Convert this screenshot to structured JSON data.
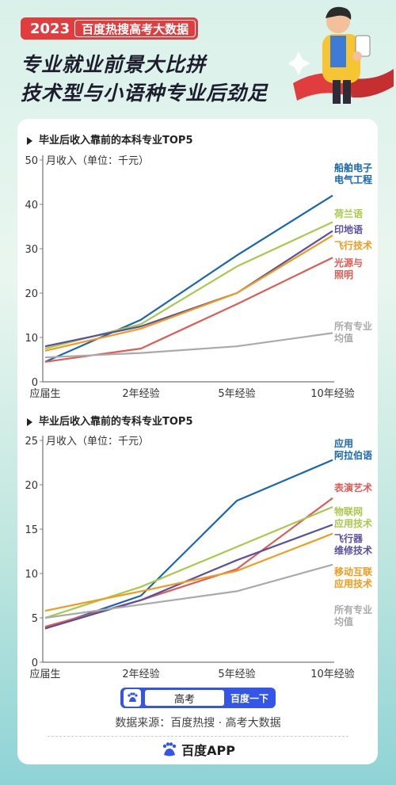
{
  "header": {
    "year": "2023",
    "tag": "百度热搜高考大数据",
    "title_line1": "专业就业前景大比拼",
    "title_line2": "技术型与小语种专业后劲足"
  },
  "colors": {
    "blue": "#1667b6",
    "lime": "#a8c94a",
    "purple": "#5b4fa0",
    "orange": "#f49a1a",
    "red": "#e05b54",
    "gray": "#aaaaaa"
  },
  "chart_data": [
    {
      "type": "line",
      "title": "毕业后收入靠前的本科专业TOP5",
      "ylabel": "月收入（单位：千元）",
      "categories": [
        "应届生",
        "2年经验",
        "5年经验",
        "10年经验"
      ],
      "ylim": [
        0,
        50
      ],
      "yticks": [
        0,
        10,
        20,
        30,
        40,
        50
      ],
      "series": [
        {
          "name": "船舶电子电气工程",
          "label_lines": [
            "船舶电子",
            "电气工程"
          ],
          "color": "#1667b6",
          "values": [
            4.5,
            14,
            28.5,
            42
          ]
        },
        {
          "name": "荷兰语",
          "label_lines": [
            "荷兰语"
          ],
          "color": "#a8c94a",
          "values": [
            7.5,
            13,
            26,
            36
          ]
        },
        {
          "name": "印地语",
          "label_lines": [
            "印地语"
          ],
          "color": "#5b4fa0",
          "values": [
            8,
            12.5,
            20,
            34
          ]
        },
        {
          "name": "飞行技术",
          "label_lines": [
            "飞行技术"
          ],
          "color": "#f49a1a",
          "values": [
            7,
            12,
            20,
            33
          ]
        },
        {
          "name": "光源与照明",
          "label_lines": [
            "光源与",
            "照明"
          ],
          "color": "#e05b54",
          "values": [
            4.5,
            7.5,
            17.5,
            28
          ]
        },
        {
          "name": "所有专业均值",
          "label_lines": [
            "所有专业",
            "均值"
          ],
          "color": "#aaaaaa",
          "values": [
            5.5,
            6.5,
            8,
            11
          ]
        }
      ]
    },
    {
      "type": "line",
      "title": "毕业后收入靠前的专科专业TOP5",
      "ylabel": "月收入（单位：千元）",
      "categories": [
        "应届生",
        "2年经验",
        "5年经验",
        "10年经验"
      ],
      "ylim": [
        0,
        25
      ],
      "yticks": [
        0,
        5,
        10,
        15,
        20,
        25
      ],
      "series": [
        {
          "name": "应用阿拉伯语",
          "label_lines": [
            "应用",
            "阿拉伯语"
          ],
          "color": "#1667b6",
          "values": [
            3.8,
            7.5,
            18.2,
            22.8
          ]
        },
        {
          "name": "表演艺术",
          "label_lines": [
            "表演艺术"
          ],
          "color": "#e05b54",
          "values": [
            4,
            7,
            10.5,
            18.5
          ]
        },
        {
          "name": "物联网应用技术",
          "label_lines": [
            "物联网",
            "应用技术"
          ],
          "color": "#a8c94a",
          "values": [
            5,
            8.5,
            13,
            17.5
          ]
        },
        {
          "name": "飞行器维修技术",
          "label_lines": [
            "飞行器",
            "维修技术"
          ],
          "color": "#5b4fa0",
          "values": [
            3.8,
            7,
            11.5,
            15.5
          ]
        },
        {
          "name": "移动互联应用技术",
          "label_lines": [
            "移动互联",
            "应用技术"
          ],
          "color": "#f49a1a",
          "values": [
            5.8,
            8,
            10.3,
            14.5
          ]
        },
        {
          "name": "所有专业均值",
          "label_lines": [
            "所有专业",
            "均值"
          ],
          "color": "#aaaaaa",
          "values": [
            5,
            6.5,
            8,
            11
          ]
        }
      ]
    }
  ],
  "search": {
    "query": "高考",
    "button": "百度一下"
  },
  "footer": {
    "source": "数据来源：百度热搜 · 高考大数据",
    "brand": "百度APP"
  }
}
